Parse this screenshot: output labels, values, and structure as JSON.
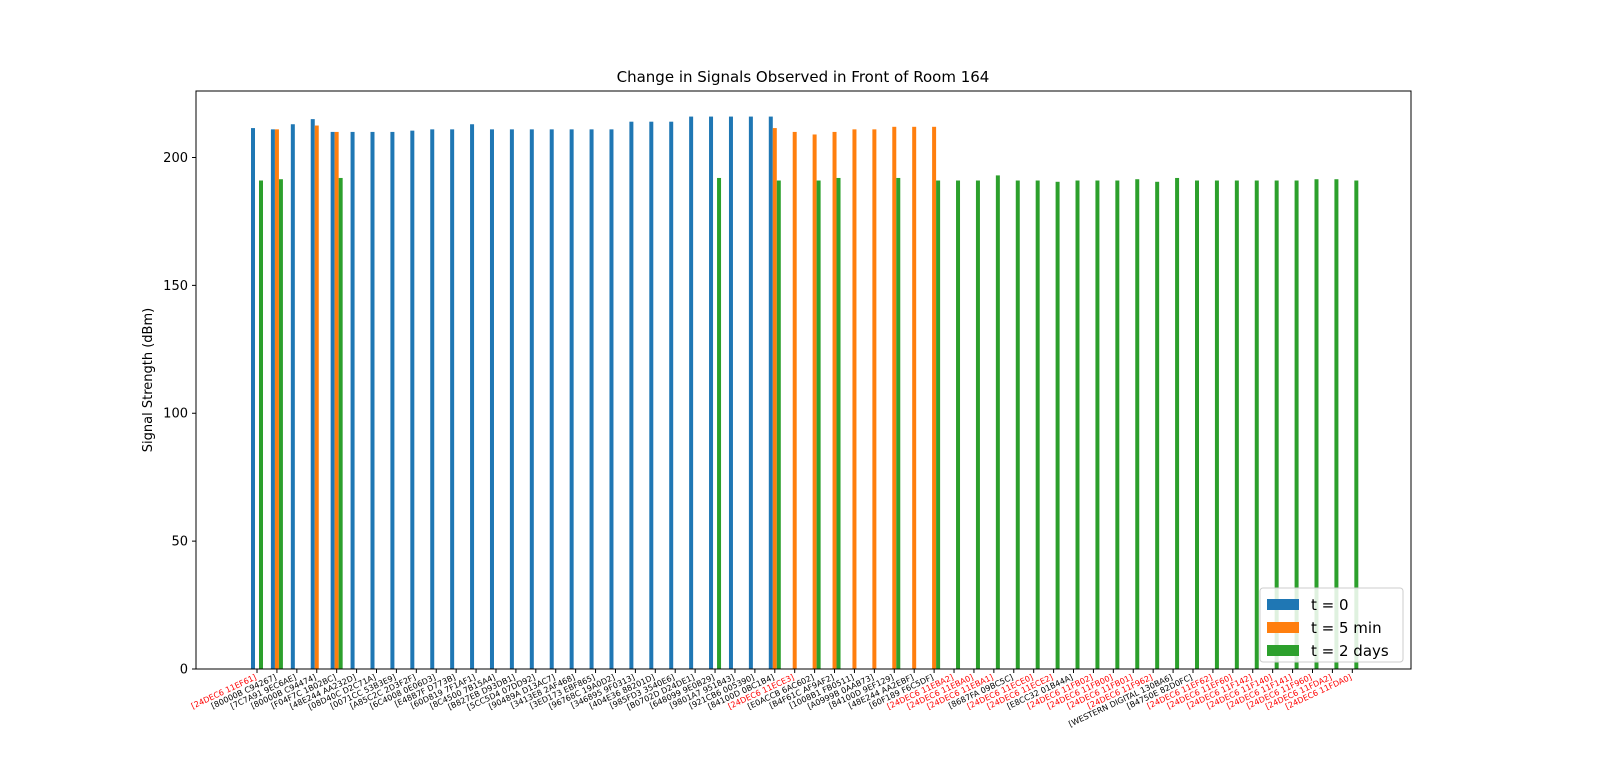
{
  "chart_data": {
    "type": "bar",
    "title": "Change in Signals Observed in Front of Room 164",
    "xlabel": "",
    "ylabel": "Signal Strength (dBm)",
    "ylim": [
      0,
      226
    ],
    "yticks": [
      0,
      50,
      100,
      150,
      200
    ],
    "grid": false,
    "legend_position": "lower-right",
    "categories": [
      "[24DEC6 11EF61]",
      "[80000B C94267]",
      "[7C7A91 9EC6AE]",
      "[80000B C94474]",
      "[F04F7C 1B02BC]",
      "[48E244 AA232D]",
      "[08D40C D2C71A]",
      "[0071CC 53B3E9]",
      "[A85C2C 2D3F2F]",
      "[6C4008 0E06D3]",
      "[E48B7F D773B]",
      "[60D819 7F1AF1]",
      "[8C4500 7B15A4]",
      "[B827EB D93DB1]",
      "[5CC5D4 07DD92]",
      "[90489A D13AC7]",
      "[3413E8 2AF468]",
      "[3ED173 EBF865]",
      "[96768C 19A0D2]",
      "[346895 9F0313]",
      "[404E36 88201D]",
      "[985FD3 3540E6]",
      "[B0702D D24DE1]",
      "[648099 9E0B29]",
      "[9801A7 951843]",
      "[921CB6 005390]",
      "[84100D 0BC1B4]",
      "[24DEC6 11ECE3]",
      "[E0ACCB 6AC602]",
      "[B4F61C AF9AF2]",
      "[1008B1 FB0511]",
      "[A0999B 0AAB73]",
      "[84100D 9EF129]",
      "[48E244 AA2EBF]",
      "[60F189 F6C5DF]",
      "[24DEC6 11EBA2]",
      "[24DEC6 11EBA0]",
      "[24DEC6 11EBA1]",
      "[8687FA 09BC5C]",
      "[24DEC6 11ECE0]",
      "[24DEC6 11ECE2]",
      "[E8CC32 01B44A]",
      "[24DEC6 11FB02]",
      "[24DEC6 11FB00]",
      "[24DEC6 11FB01]",
      "[24DEC6 11F962]",
      "[WESTERN DIGITAL 130BA6]",
      "[B4750E 82D0FC]",
      "[24DEC6 11EF62]",
      "[24DEC6 11EF60]",
      "[24DEC6 11F142]",
      "[24DEC6 11F140]",
      "[24DEC6 11F141]",
      "[24DEC6 11F960]",
      "[24DEC6 11FDA2]",
      "[24DEC6 11FDA0]"
    ],
    "category_colors": [
      "#ff0000",
      "#000000",
      "#000000",
      "#000000",
      "#000000",
      "#000000",
      "#000000",
      "#000000",
      "#000000",
      "#000000",
      "#000000",
      "#000000",
      "#000000",
      "#000000",
      "#000000",
      "#000000",
      "#000000",
      "#000000",
      "#000000",
      "#000000",
      "#000000",
      "#000000",
      "#000000",
      "#000000",
      "#000000",
      "#000000",
      "#000000",
      "#ff0000",
      "#000000",
      "#000000",
      "#000000",
      "#000000",
      "#000000",
      "#000000",
      "#000000",
      "#ff0000",
      "#ff0000",
      "#ff0000",
      "#000000",
      "#ff0000",
      "#ff0000",
      "#000000",
      "#ff0000",
      "#ff0000",
      "#ff0000",
      "#ff0000",
      "#000000",
      "#000000",
      "#ff0000",
      "#ff0000",
      "#ff0000",
      "#ff0000",
      "#ff0000",
      "#ff0000",
      "#ff0000",
      "#ff0000"
    ],
    "series": [
      {
        "name": "t = 0",
        "color": "#1f77b4",
        "values": [
          211.5,
          211,
          213,
          215,
          210,
          210,
          210,
          210,
          210.5,
          211,
          211,
          213,
          211,
          211,
          211,
          211,
          211,
          211,
          211,
          214,
          214,
          214,
          216,
          216,
          216,
          216,
          216,
          null,
          null,
          null,
          null,
          null,
          null,
          null,
          null,
          null,
          null,
          null,
          null,
          null,
          null,
          null,
          null,
          null,
          null,
          null,
          null,
          null,
          null,
          null,
          null,
          null,
          null,
          null,
          null,
          null
        ]
      },
      {
        "name": "t = 5 min",
        "color": "#ff7f0e",
        "values": [
          null,
          211,
          null,
          212.5,
          210,
          null,
          null,
          null,
          null,
          null,
          null,
          null,
          null,
          null,
          null,
          null,
          null,
          null,
          null,
          null,
          null,
          null,
          null,
          null,
          null,
          null,
          211.5,
          210,
          209,
          210,
          211,
          211,
          212,
          212,
          212,
          null,
          null,
          null,
          null,
          null,
          null,
          null,
          null,
          null,
          null,
          null,
          null,
          null,
          null,
          null,
          null,
          null,
          null,
          null,
          null,
          null
        ]
      },
      {
        "name": "t = 2 days",
        "color": "#2ca02c",
        "values": [
          191,
          191.5,
          null,
          null,
          192,
          null,
          null,
          null,
          null,
          null,
          null,
          null,
          null,
          null,
          null,
          null,
          null,
          null,
          null,
          null,
          null,
          null,
          null,
          192,
          null,
          null,
          191,
          null,
          191,
          192,
          null,
          null,
          192,
          null,
          191,
          191,
          191,
          193,
          191,
          191,
          190.5,
          191,
          191,
          191,
          191.5,
          190.5,
          192,
          191,
          191,
          191,
          191,
          191,
          191,
          191.5,
          191.5,
          191
        ]
      }
    ]
  }
}
